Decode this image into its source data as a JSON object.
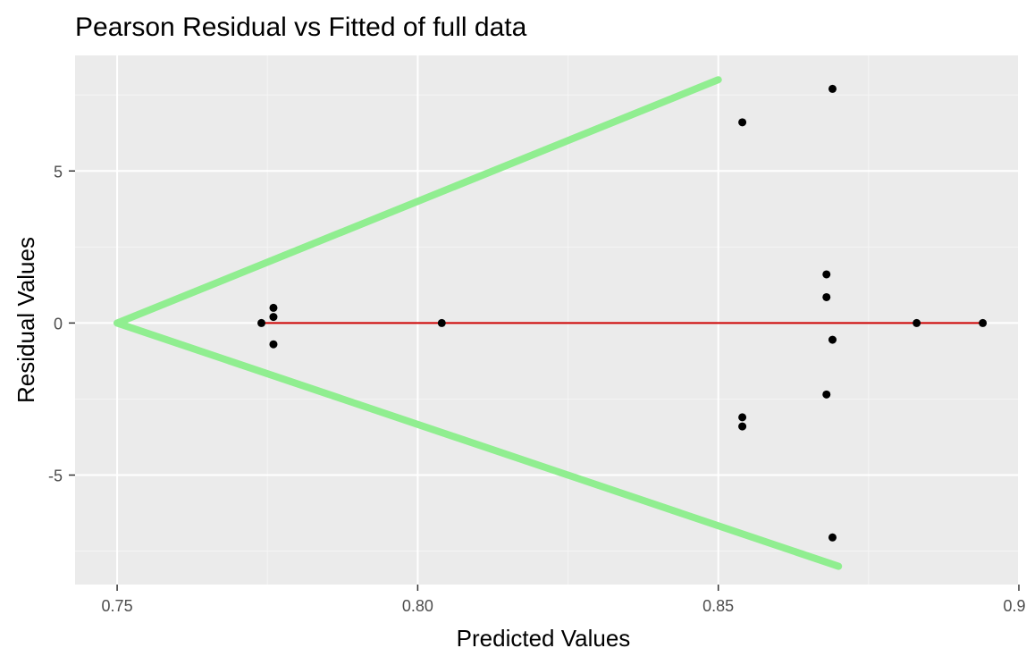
{
  "chart_data": {
    "type": "scatter",
    "title": "Pearson Residual vs Fitted of full data",
    "xlabel": "Predicted Values",
    "ylabel": "Residual Values",
    "xlim": [
      0.743,
      0.9
    ],
    "ylim": [
      -8.6,
      8.8
    ],
    "x_ticks": [
      0.75,
      0.8,
      0.85,
      0.9
    ],
    "x_tick_labels": [
      "0.75",
      "0.80",
      "0.85",
      "0.90"
    ],
    "y_ticks": [
      -5,
      0,
      5
    ],
    "y_tick_labels": [
      "-5",
      "0",
      "5"
    ],
    "grid": true,
    "legend": "none",
    "points": [
      {
        "x": 0.774,
        "y": 0.0
      },
      {
        "x": 0.776,
        "y": 0.5
      },
      {
        "x": 0.776,
        "y": 0.2
      },
      {
        "x": 0.776,
        "y": -0.7
      },
      {
        "x": 0.804,
        "y": 0.0
      },
      {
        "x": 0.854,
        "y": 6.6
      },
      {
        "x": 0.854,
        "y": -3.1
      },
      {
        "x": 0.854,
        "y": -3.4
      },
      {
        "x": 0.868,
        "y": 1.6
      },
      {
        "x": 0.868,
        "y": 0.85
      },
      {
        "x": 0.868,
        "y": -2.35
      },
      {
        "x": 0.869,
        "y": 7.7
      },
      {
        "x": 0.869,
        "y": -0.55
      },
      {
        "x": 0.869,
        "y": -7.05
      },
      {
        "x": 0.883,
        "y": 0.0
      },
      {
        "x": 0.894,
        "y": 0.0
      }
    ],
    "reference_lines": [
      {
        "name": "zero-line",
        "color": "#cc0000",
        "points": [
          [
            0.774,
            0.0
          ],
          [
            0.894,
            0.0
          ]
        ]
      },
      {
        "name": "upper-envelope",
        "color": "#90ee90",
        "points": [
          [
            0.75,
            0.0
          ],
          [
            0.85,
            8.0
          ]
        ]
      },
      {
        "name": "lower-envelope",
        "color": "#90ee90",
        "points": [
          [
            0.75,
            0.0
          ],
          [
            0.87,
            -8.0
          ]
        ]
      }
    ],
    "colors": {
      "panel_background": "#ebebeb",
      "grid_major": "#ffffff",
      "grid_minor": "#f5f5f5",
      "point": "#000000",
      "tick": "#333333"
    }
  }
}
